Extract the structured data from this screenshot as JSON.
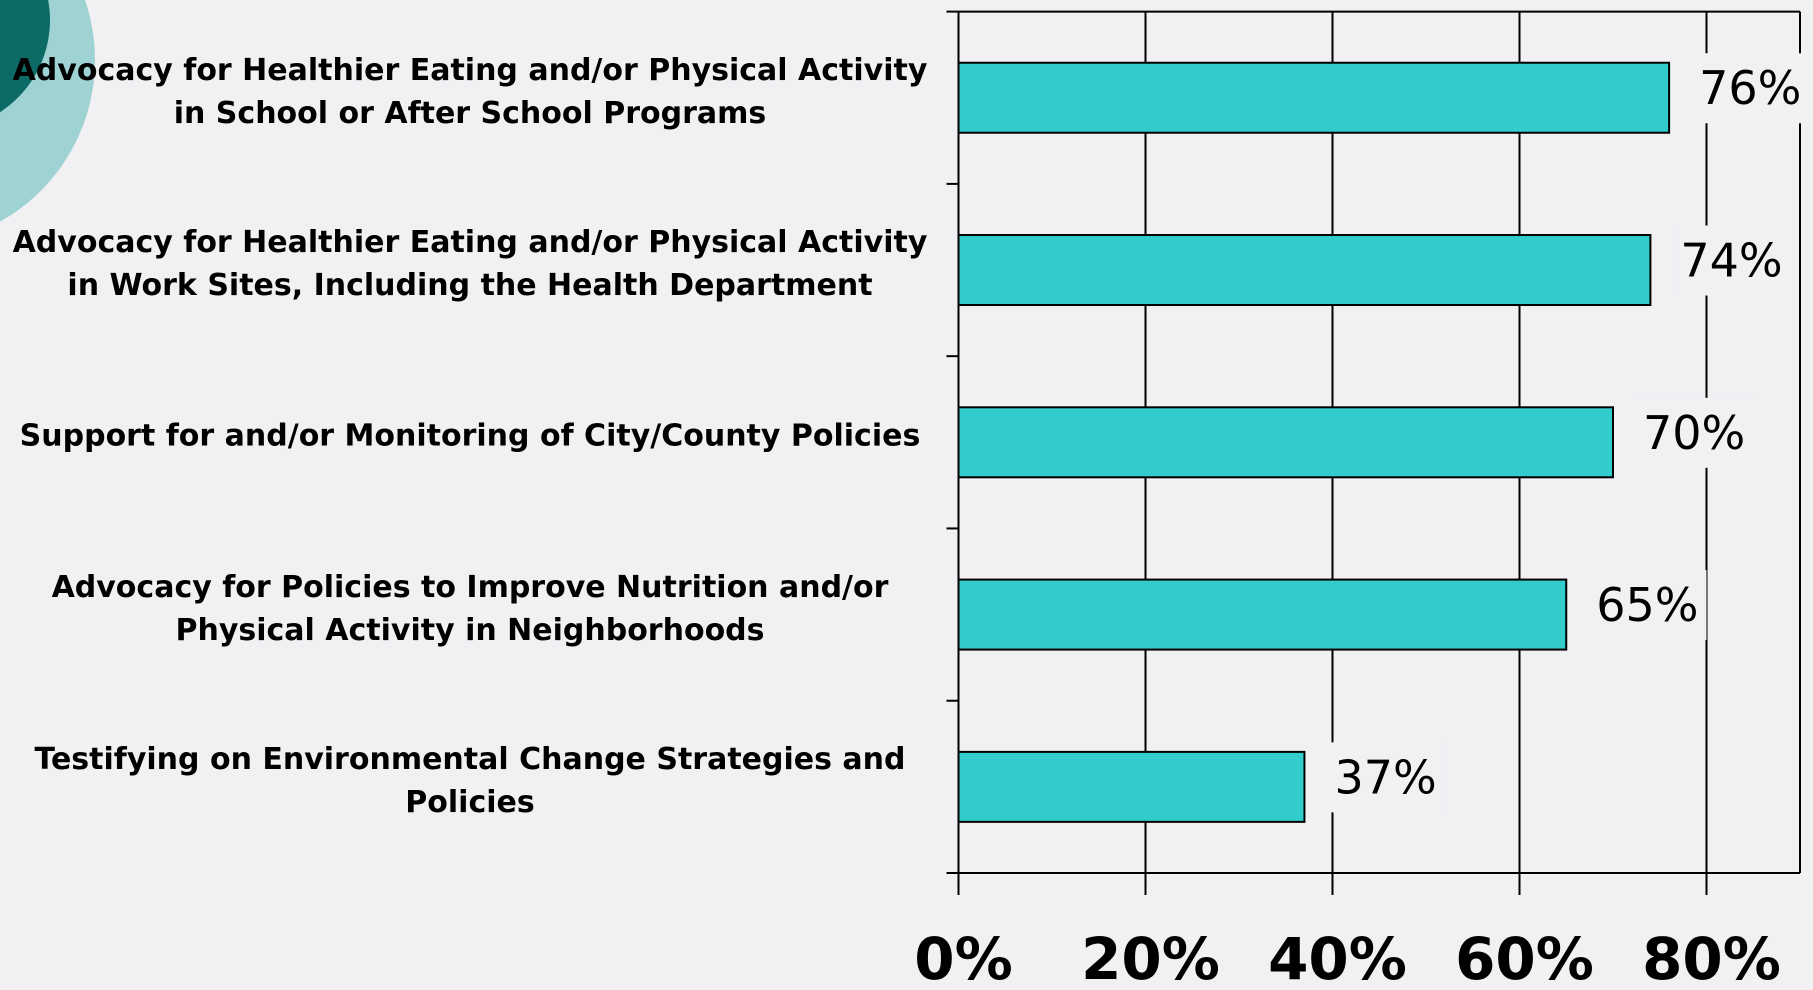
{
  "chart_data": {
    "type": "bar",
    "orientation": "horizontal",
    "categories": [
      "Advocacy for Healthier Eating and/or Physical Activity in School or After School Programs",
      "Advocacy for Healthier Eating and/or Physical Activity in Work Sites, Including the Health Department",
      "Support for and/or Monitoring of City/County Policies",
      "Advocacy for Policies to Improve Nutrition and/or Physical Activity in Neighborhoods",
      "Testifying on Environmental Change Strategies and Policies"
    ],
    "values": [
      76,
      74,
      70,
      65,
      37
    ],
    "value_labels": [
      "76%",
      "74%",
      "70%",
      "65%",
      "37%"
    ],
    "color": "#33cccc",
    "xlim": [
      0,
      90
    ],
    "xticks": [
      {
        "value": 0,
        "label": "0%"
      },
      {
        "value": 20,
        "label": "20%"
      },
      {
        "value": 40,
        "label": "40%"
      },
      {
        "value": 60,
        "label": "60%"
      },
      {
        "value": 80,
        "label": "80%"
      }
    ],
    "grid": true
  }
}
